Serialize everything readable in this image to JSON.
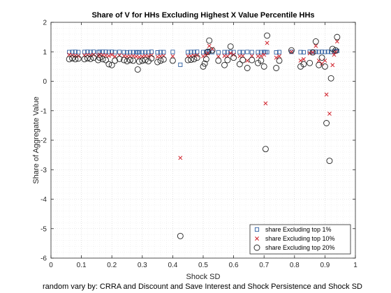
{
  "chart_data": {
    "type": "scatter",
    "title": "Share of V for HHs Excluding Highest X Value Percentile HHs",
    "xlabel": "Shock SD",
    "ylabel": "Share of Aggregate Value",
    "footnote": "random vary by: CRRA and Discount and Save Interest and Shock Persistence and Shock SD",
    "xlim": [
      0,
      1
    ],
    "ylim": [
      -6,
      2
    ],
    "xticks": [
      0,
      0.1,
      0.2,
      0.3,
      0.4,
      0.5,
      0.6,
      0.7,
      0.8,
      0.9,
      1
    ],
    "xtick_labels": [
      "0",
      "0.1",
      "0.2",
      "0.3",
      "0.4",
      "0.5",
      "0.6",
      "0.7",
      "0.8",
      "0.9",
      "1"
    ],
    "yticks": [
      -6,
      -5,
      -4,
      -3,
      -2,
      -1,
      0,
      1,
      2
    ],
    "ytick_labels": [
      "-6",
      "-5",
      "-4",
      "-3",
      "-2",
      "-1",
      "0",
      "1",
      "2"
    ],
    "grid": "on (dotted major and minor)",
    "legend_position": "bottom-right",
    "series": [
      {
        "name": "share Excluding top 1%",
        "marker": "square",
        "color": "#2f5fa0",
        "points": [
          [
            0.06,
            0.99
          ],
          [
            0.07,
            0.995
          ],
          [
            0.08,
            0.998
          ],
          [
            0.09,
            0.99
          ],
          [
            0.11,
            0.995
          ],
          [
            0.12,
            1.0
          ],
          [
            0.13,
            0.995
          ],
          [
            0.14,
            1.0
          ],
          [
            0.155,
            0.99
          ],
          [
            0.16,
            1.0
          ],
          [
            0.17,
            1.0
          ],
          [
            0.18,
            1.0
          ],
          [
            0.19,
            0.995
          ],
          [
            0.2,
            1.0
          ],
          [
            0.21,
            0.99
          ],
          [
            0.225,
            0.995
          ],
          [
            0.24,
            0.99
          ],
          [
            0.25,
            0.985
          ],
          [
            0.26,
            0.99
          ],
          [
            0.27,
            0.99
          ],
          [
            0.28,
            0.99
          ],
          [
            0.285,
            0.98
          ],
          [
            0.29,
            0.99
          ],
          [
            0.3,
            0.99
          ],
          [
            0.31,
            0.99
          ],
          [
            0.32,
            0.99
          ],
          [
            0.33,
            1.0
          ],
          [
            0.35,
            0.98
          ],
          [
            0.36,
            0.99
          ],
          [
            0.37,
            0.99
          ],
          [
            0.4,
            0.995
          ],
          [
            0.425,
            0.56
          ],
          [
            0.45,
            0.99
          ],
          [
            0.46,
            0.995
          ],
          [
            0.47,
            0.995
          ],
          [
            0.48,
            1.0
          ],
          [
            0.5,
            0.99
          ],
          [
            0.51,
            0.995
          ],
          [
            0.515,
            1.0
          ],
          [
            0.52,
            1.02
          ],
          [
            0.53,
            0.99
          ],
          [
            0.55,
            0.985
          ],
          [
            0.57,
            0.99
          ],
          [
            0.58,
            0.99
          ],
          [
            0.59,
            0.99
          ],
          [
            0.6,
            0.99
          ],
          [
            0.62,
            0.99
          ],
          [
            0.63,
            0.99
          ],
          [
            0.645,
            0.995
          ],
          [
            0.66,
            0.99
          ],
          [
            0.68,
            0.99
          ],
          [
            0.69,
            0.99
          ],
          [
            0.7,
            0.995
          ],
          [
            0.705,
            0.985
          ],
          [
            0.71,
            0.99
          ],
          [
            0.74,
            0.98
          ],
          [
            0.75,
            0.99
          ],
          [
            0.79,
            1.0
          ],
          [
            0.82,
            0.99
          ],
          [
            0.83,
            0.985
          ],
          [
            0.85,
            1.0
          ],
          [
            0.86,
            0.995
          ],
          [
            0.87,
            1.0
          ],
          [
            0.88,
            0.995
          ],
          [
            0.89,
            1.0
          ],
          [
            0.9,
            0.995
          ],
          [
            0.91,
            1.0
          ],
          [
            0.92,
            0.995
          ],
          [
            0.93,
            1.0
          ],
          [
            0.935,
            1.02
          ],
          [
            0.94,
            1.03
          ]
        ]
      },
      {
        "name": "share Excluding top 10%",
        "marker": "x",
        "color": "#d0202a",
        "points": [
          [
            0.06,
            0.9
          ],
          [
            0.07,
            0.88
          ],
          [
            0.08,
            0.87
          ],
          [
            0.09,
            0.86
          ],
          [
            0.11,
            0.88
          ],
          [
            0.12,
            0.89
          ],
          [
            0.13,
            0.88
          ],
          [
            0.14,
            0.9
          ],
          [
            0.155,
            0.87
          ],
          [
            0.16,
            0.9
          ],
          [
            0.17,
            0.89
          ],
          [
            0.18,
            0.88
          ],
          [
            0.19,
            0.86
          ],
          [
            0.2,
            0.9
          ],
          [
            0.21,
            0.84
          ],
          [
            0.225,
            0.88
          ],
          [
            0.24,
            0.86
          ],
          [
            0.25,
            0.84
          ],
          [
            0.26,
            0.85
          ],
          [
            0.27,
            0.86
          ],
          [
            0.28,
            0.84
          ],
          [
            0.29,
            0.82
          ],
          [
            0.3,
            0.84
          ],
          [
            0.31,
            0.86
          ],
          [
            0.32,
            0.85
          ],
          [
            0.33,
            0.88
          ],
          [
            0.35,
            0.83
          ],
          [
            0.36,
            0.85
          ],
          [
            0.37,
            0.86
          ],
          [
            0.4,
            0.85
          ],
          [
            0.425,
            -2.6
          ],
          [
            0.45,
            0.85
          ],
          [
            0.46,
            0.86
          ],
          [
            0.47,
            0.87
          ],
          [
            0.48,
            0.88
          ],
          [
            0.5,
            0.85
          ],
          [
            0.51,
            0.88
          ],
          [
            0.515,
            0.95
          ],
          [
            0.52,
            1.2
          ],
          [
            0.53,
            1.1
          ],
          [
            0.55,
            0.84
          ],
          [
            0.57,
            0.86
          ],
          [
            0.58,
            0.85
          ],
          [
            0.59,
            0.95
          ],
          [
            0.6,
            0.9
          ],
          [
            0.62,
            0.85
          ],
          [
            0.63,
            0.86
          ],
          [
            0.645,
            0.7
          ],
          [
            0.66,
            0.86
          ],
          [
            0.68,
            0.85
          ],
          [
            0.69,
            0.86
          ],
          [
            0.7,
            0.9
          ],
          [
            0.705,
            -0.75
          ],
          [
            0.71,
            1.3
          ],
          [
            0.74,
            0.8
          ],
          [
            0.75,
            0.85
          ],
          [
            0.79,
            1.0
          ],
          [
            0.82,
            0.7
          ],
          [
            0.83,
            0.75
          ],
          [
            0.85,
            0.95
          ],
          [
            0.86,
            0.98
          ],
          [
            0.87,
            1.2
          ],
          [
            0.88,
            0.7
          ],
          [
            0.89,
            0.6
          ],
          [
            0.9,
            0.7
          ],
          [
            0.905,
            -0.45
          ],
          [
            0.915,
            -1.1
          ],
          [
            0.925,
            0.55
          ],
          [
            0.93,
            0.9
          ],
          [
            0.935,
            1.0
          ],
          [
            0.94,
            1.35
          ]
        ]
      },
      {
        "name": "share Excluding top 20%",
        "marker": "circle",
        "color": "#222222",
        "points": [
          [
            0.06,
            0.75
          ],
          [
            0.07,
            0.78
          ],
          [
            0.08,
            0.75
          ],
          [
            0.09,
            0.77
          ],
          [
            0.11,
            0.75
          ],
          [
            0.12,
            0.78
          ],
          [
            0.13,
            0.76
          ],
          [
            0.14,
            0.8
          ],
          [
            0.155,
            0.72
          ],
          [
            0.16,
            0.8
          ],
          [
            0.17,
            0.75
          ],
          [
            0.18,
            0.72
          ],
          [
            0.19,
            0.58
          ],
          [
            0.2,
            0.55
          ],
          [
            0.21,
            0.7
          ],
          [
            0.225,
            0.76
          ],
          [
            0.24,
            0.72
          ],
          [
            0.25,
            0.68
          ],
          [
            0.26,
            0.72
          ],
          [
            0.27,
            0.7
          ],
          [
            0.285,
            0.4
          ],
          [
            0.29,
            0.67
          ],
          [
            0.3,
            0.7
          ],
          [
            0.31,
            0.72
          ],
          [
            0.32,
            0.68
          ],
          [
            0.33,
            0.78
          ],
          [
            0.35,
            0.65
          ],
          [
            0.36,
            0.7
          ],
          [
            0.37,
            0.74
          ],
          [
            0.4,
            0.7
          ],
          [
            0.425,
            -5.25
          ],
          [
            0.45,
            0.72
          ],
          [
            0.46,
            0.73
          ],
          [
            0.47,
            0.75
          ],
          [
            0.48,
            0.8
          ],
          [
            0.5,
            0.5
          ],
          [
            0.505,
            0.6
          ],
          [
            0.51,
            0.75
          ],
          [
            0.515,
            1.0
          ],
          [
            0.52,
            1.38
          ],
          [
            0.53,
            1.05
          ],
          [
            0.55,
            0.7
          ],
          [
            0.57,
            0.55
          ],
          [
            0.58,
            0.72
          ],
          [
            0.59,
            1.18
          ],
          [
            0.6,
            0.8
          ],
          [
            0.62,
            0.58
          ],
          [
            0.63,
            0.72
          ],
          [
            0.645,
            0.45
          ],
          [
            0.66,
            0.72
          ],
          [
            0.68,
            0.62
          ],
          [
            0.69,
            0.7
          ],
          [
            0.7,
            0.5
          ],
          [
            0.705,
            -2.3
          ],
          [
            0.71,
            1.55
          ],
          [
            0.74,
            0.45
          ],
          [
            0.75,
            0.7
          ],
          [
            0.79,
            1.05
          ],
          [
            0.82,
            0.5
          ],
          [
            0.83,
            0.58
          ],
          [
            0.85,
            0.62
          ],
          [
            0.86,
            0.98
          ],
          [
            0.87,
            1.35
          ],
          [
            0.88,
            0.55
          ],
          [
            0.89,
            0.8
          ],
          [
            0.9,
            0.5
          ],
          [
            0.905,
            -1.42
          ],
          [
            0.915,
            -2.7
          ],
          [
            0.92,
            0.1
          ],
          [
            0.925,
            1.1
          ],
          [
            0.935,
            1.05
          ],
          [
            0.94,
            1.5
          ]
        ]
      }
    ]
  }
}
